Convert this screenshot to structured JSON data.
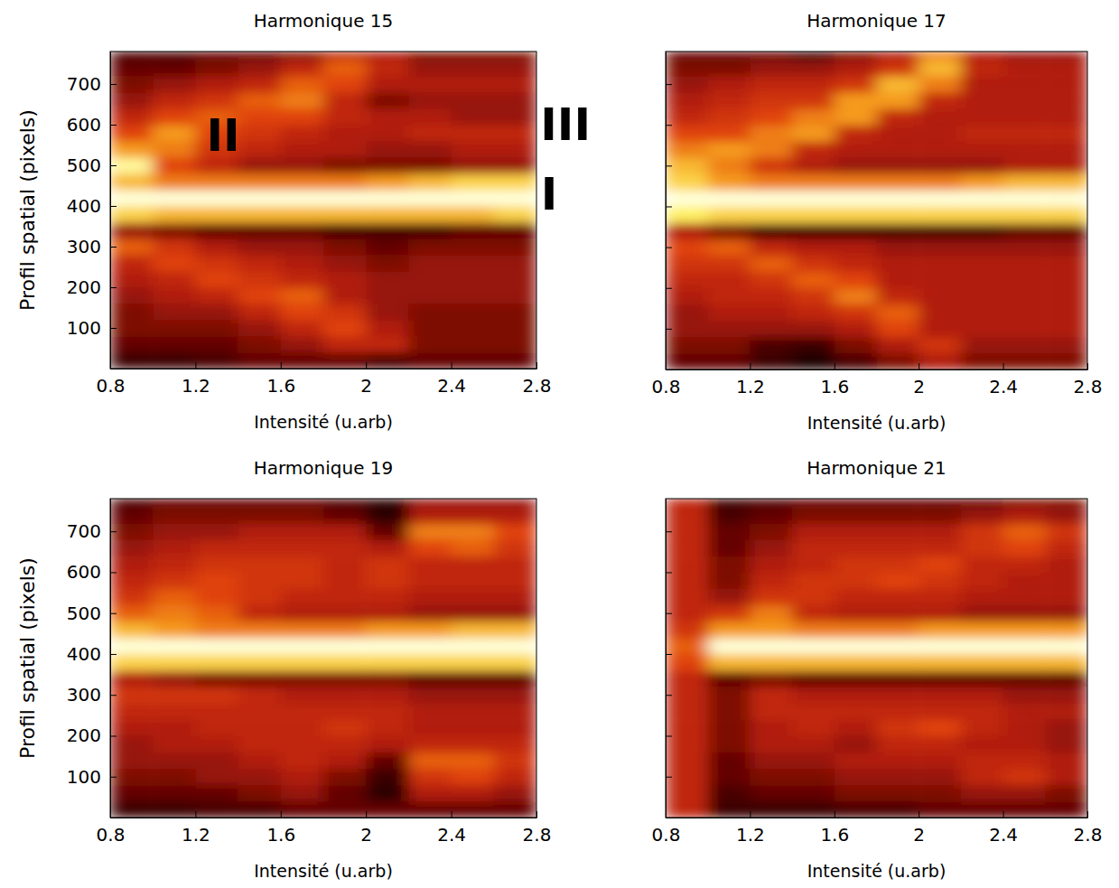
{
  "chart_data": [
    {
      "type": "heatmap",
      "title": "Harmonique 15",
      "x_label": "Intensité (u.arb)",
      "y_label": "Profil spatial (pixels)",
      "xlim": [
        0.8,
        2.8
      ],
      "ylim": [
        0,
        780
      ],
      "xticks": [
        0.8,
        1.2,
        1.6,
        2,
        2.4,
        2.8
      ],
      "yticks": [
        100,
        200,
        300,
        400,
        500,
        600,
        700
      ],
      "tick_labels": true,
      "zlim": [
        0,
        1
      ],
      "x_edges": [
        0.8,
        1.0,
        1.2,
        1.4,
        1.6,
        1.8,
        2.0,
        2.2,
        2.4,
        2.6,
        2.8
      ],
      "y_edges": [
        0,
        40,
        80,
        120,
        160,
        200,
        240,
        280,
        320,
        360,
        400,
        440,
        480,
        520,
        560,
        600,
        640,
        680,
        720,
        760,
        780
      ],
      "z": [
        [
          0.2,
          0.2,
          0.25,
          0.3,
          0.3,
          0.3,
          0.25,
          0.3,
          0.3,
          0.3
        ],
        [
          0.3,
          0.3,
          0.3,
          0.35,
          0.4,
          0.5,
          0.5,
          0.35,
          0.35,
          0.35
        ],
        [
          0.35,
          0.35,
          0.35,
          0.4,
          0.5,
          0.6,
          0.45,
          0.35,
          0.35,
          0.35
        ],
        [
          0.35,
          0.4,
          0.4,
          0.5,
          0.6,
          0.55,
          0.4,
          0.35,
          0.35,
          0.35
        ],
        [
          0.4,
          0.45,
          0.5,
          0.6,
          0.65,
          0.45,
          0.4,
          0.4,
          0.4,
          0.4
        ],
        [
          0.45,
          0.5,
          0.6,
          0.55,
          0.5,
          0.45,
          0.4,
          0.4,
          0.4,
          0.4
        ],
        [
          0.5,
          0.6,
          0.55,
          0.5,
          0.45,
          0.4,
          0.35,
          0.4,
          0.4,
          0.4
        ],
        [
          0.65,
          0.55,
          0.45,
          0.4,
          0.4,
          0.35,
          0.3,
          0.35,
          0.35,
          0.35
        ],
        [
          0.4,
          0.35,
          0.3,
          0.3,
          0.3,
          0.25,
          0.25,
          0.25,
          0.3,
          0.3
        ],
        [
          0.85,
          0.8,
          0.8,
          0.8,
          0.8,
          0.8,
          0.8,
          0.8,
          0.8,
          0.85
        ],
        [
          1,
          1,
          1,
          1,
          1,
          1,
          1,
          1,
          1,
          1
        ],
        [
          0.8,
          0.7,
          0.7,
          0.7,
          0.7,
          0.7,
          0.75,
          0.8,
          0.85,
          0.85
        ],
        [
          0.95,
          0.6,
          0.5,
          0.4,
          0.4,
          0.35,
          0.35,
          0.35,
          0.4,
          0.4
        ],
        [
          0.75,
          0.7,
          0.55,
          0.5,
          0.45,
          0.45,
          0.4,
          0.4,
          0.45,
          0.45
        ],
        [
          0.6,
          0.75,
          0.6,
          0.55,
          0.5,
          0.45,
          0.45,
          0.5,
          0.5,
          0.5
        ],
        [
          0.5,
          0.6,
          0.65,
          0.6,
          0.6,
          0.5,
          0.45,
          0.45,
          0.4,
          0.4
        ],
        [
          0.4,
          0.5,
          0.55,
          0.65,
          0.7,
          0.5,
          0.35,
          0.4,
          0.4,
          0.4
        ],
        [
          0.35,
          0.4,
          0.45,
          0.5,
          0.65,
          0.6,
          0.45,
          0.45,
          0.45,
          0.45
        ],
        [
          0.3,
          0.3,
          0.35,
          0.4,
          0.5,
          0.65,
          0.5,
          0.4,
          0.4,
          0.4
        ],
        [
          0.25,
          0.25,
          0.3,
          0.3,
          0.35,
          0.5,
          0.45,
          0.35,
          0.35,
          0.35
        ]
      ],
      "annotations": [
        {
          "text": "II",
          "x": 1.33,
          "y": 573
        },
        {
          "text": "III",
          "x": 2.936,
          "y": 600
        },
        {
          "text": "I",
          "x": 2.86,
          "y": 429
        }
      ]
    },
    {
      "type": "heatmap",
      "title": "Harmonique 17",
      "x_label": "Intensité (u.arb)",
      "xlim": [
        0.8,
        2.8
      ],
      "ylim": [
        0,
        780
      ],
      "xticks": [
        0.8,
        1.2,
        1.6,
        2,
        2.4,
        2.8
      ],
      "yticks": [
        100,
        200,
        300,
        400,
        500,
        600,
        700
      ],
      "tick_labels": "x",
      "zlim": [
        0,
        1
      ],
      "x_edges": [
        0.8,
        1.0,
        1.2,
        1.4,
        1.6,
        1.8,
        2.0,
        2.2,
        2.4,
        2.6,
        2.8
      ],
      "y_edges": [
        0,
        40,
        80,
        120,
        160,
        200,
        240,
        280,
        320,
        360,
        400,
        440,
        480,
        520,
        560,
        600,
        640,
        680,
        720,
        760,
        780
      ],
      "z": [
        [
          0.3,
          0.3,
          0.2,
          0.1,
          0.25,
          0.35,
          0.45,
          0.35,
          0.35,
          0.35
        ],
        [
          0.35,
          0.35,
          0.25,
          0.2,
          0.35,
          0.45,
          0.55,
          0.4,
          0.4,
          0.4
        ],
        [
          0.4,
          0.4,
          0.4,
          0.4,
          0.45,
          0.6,
          0.45,
          0.45,
          0.45,
          0.45
        ],
        [
          0.4,
          0.45,
          0.45,
          0.5,
          0.55,
          0.65,
          0.45,
          0.45,
          0.45,
          0.45
        ],
        [
          0.45,
          0.5,
          0.5,
          0.55,
          0.7,
          0.5,
          0.45,
          0.45,
          0.45,
          0.45
        ],
        [
          0.5,
          0.5,
          0.55,
          0.65,
          0.6,
          0.45,
          0.45,
          0.45,
          0.45,
          0.45
        ],
        [
          0.55,
          0.55,
          0.65,
          0.55,
          0.5,
          0.45,
          0.45,
          0.45,
          0.45,
          0.45
        ],
        [
          0.6,
          0.65,
          0.5,
          0.45,
          0.45,
          0.4,
          0.4,
          0.4,
          0.4,
          0.4
        ],
        [
          0.45,
          0.35,
          0.25,
          0.25,
          0.25,
          0.25,
          0.25,
          0.25,
          0.3,
          0.3
        ],
        [
          0.9,
          0.85,
          0.85,
          0.85,
          0.85,
          0.85,
          0.85,
          0.85,
          0.85,
          0.85
        ],
        [
          1,
          1,
          1,
          1,
          1,
          1,
          1,
          1,
          1,
          1
        ],
        [
          0.85,
          0.75,
          0.7,
          0.7,
          0.7,
          0.7,
          0.7,
          0.75,
          0.8,
          0.8
        ],
        [
          0.8,
          0.7,
          0.55,
          0.45,
          0.4,
          0.4,
          0.4,
          0.4,
          0.45,
          0.45
        ],
        [
          0.7,
          0.75,
          0.7,
          0.5,
          0.45,
          0.45,
          0.45,
          0.45,
          0.45,
          0.45
        ],
        [
          0.6,
          0.6,
          0.7,
          0.75,
          0.5,
          0.45,
          0.45,
          0.5,
          0.5,
          0.5
        ],
        [
          0.5,
          0.55,
          0.6,
          0.7,
          0.75,
          0.5,
          0.45,
          0.45,
          0.45,
          0.45
        ],
        [
          0.45,
          0.5,
          0.55,
          0.55,
          0.75,
          0.75,
          0.5,
          0.45,
          0.45,
          0.45
        ],
        [
          0.4,
          0.45,
          0.5,
          0.5,
          0.55,
          0.8,
          0.7,
          0.45,
          0.45,
          0.45
        ],
        [
          0.35,
          0.35,
          0.4,
          0.4,
          0.45,
          0.55,
          0.8,
          0.5,
          0.45,
          0.45
        ],
        [
          0.3,
          0.3,
          0.3,
          0.15,
          0.35,
          0.45,
          0.7,
          0.45,
          0.4,
          0.4
        ]
      ]
    },
    {
      "type": "heatmap",
      "title": "Harmonique 19",
      "x_label": "Intensité (u.arb)",
      "y_label": "Profil spatial (pixels)",
      "xlim": [
        0.8,
        2.8
      ],
      "ylim": [
        0,
        780
      ],
      "xticks": [
        0.8,
        1.2,
        1.6,
        2,
        2.4,
        2.8
      ],
      "yticks": [
        100,
        200,
        300,
        400,
        500,
        600,
        700
      ],
      "tick_labels": true,
      "zlim": [
        0,
        1
      ],
      "x_edges": [
        0.8,
        1.0,
        1.2,
        1.4,
        1.6,
        1.8,
        2.0,
        2.2,
        2.4,
        2.6,
        2.8
      ],
      "y_edges": [
        0,
        40,
        80,
        120,
        160,
        200,
        240,
        280,
        320,
        360,
        400,
        440,
        480,
        520,
        560,
        600,
        640,
        680,
        720,
        760,
        780
      ],
      "z": [
        [
          0.2,
          0.2,
          0.25,
          0.25,
          0.3,
          0.3,
          0.3,
          0.3,
          0.3,
          0.3
        ],
        [
          0.3,
          0.3,
          0.3,
          0.35,
          0.4,
          0.3,
          0.15,
          0.45,
          0.45,
          0.4
        ],
        [
          0.35,
          0.35,
          0.4,
          0.4,
          0.45,
          0.35,
          0.2,
          0.55,
          0.6,
          0.5
        ],
        [
          0.4,
          0.4,
          0.4,
          0.45,
          0.5,
          0.45,
          0.3,
          0.65,
          0.65,
          0.55
        ],
        [
          0.4,
          0.45,
          0.45,
          0.5,
          0.5,
          0.5,
          0.45,
          0.5,
          0.5,
          0.5
        ],
        [
          0.45,
          0.45,
          0.5,
          0.5,
          0.5,
          0.55,
          0.5,
          0.45,
          0.45,
          0.45
        ],
        [
          0.5,
          0.5,
          0.5,
          0.5,
          0.5,
          0.5,
          0.5,
          0.45,
          0.45,
          0.45
        ],
        [
          0.55,
          0.55,
          0.55,
          0.5,
          0.45,
          0.45,
          0.45,
          0.4,
          0.4,
          0.4
        ],
        [
          0.45,
          0.4,
          0.35,
          0.35,
          0.35,
          0.35,
          0.35,
          0.3,
          0.3,
          0.3
        ],
        [
          0.85,
          0.85,
          0.85,
          0.85,
          0.85,
          0.85,
          0.85,
          0.85,
          0.85,
          0.85
        ],
        [
          1,
          1,
          1,
          1,
          1,
          1,
          1,
          1,
          1,
          1
        ],
        [
          0.8,
          0.75,
          0.7,
          0.7,
          0.7,
          0.7,
          0.75,
          0.75,
          0.8,
          0.8
        ],
        [
          0.65,
          0.7,
          0.65,
          0.5,
          0.45,
          0.45,
          0.45,
          0.4,
          0.4,
          0.4
        ],
        [
          0.55,
          0.65,
          0.6,
          0.55,
          0.5,
          0.5,
          0.5,
          0.45,
          0.45,
          0.45
        ],
        [
          0.5,
          0.55,
          0.6,
          0.55,
          0.55,
          0.5,
          0.55,
          0.5,
          0.5,
          0.5
        ],
        [
          0.45,
          0.5,
          0.55,
          0.55,
          0.55,
          0.5,
          0.55,
          0.5,
          0.5,
          0.5
        ],
        [
          0.4,
          0.45,
          0.5,
          0.5,
          0.5,
          0.5,
          0.45,
          0.6,
          0.65,
          0.55
        ],
        [
          0.35,
          0.4,
          0.4,
          0.45,
          0.45,
          0.45,
          0.3,
          0.7,
          0.7,
          0.6
        ],
        [
          0.3,
          0.35,
          0.35,
          0.35,
          0.35,
          0.3,
          0.15,
          0.45,
          0.45,
          0.45
        ],
        [
          0.25,
          0.3,
          0.3,
          0.3,
          0.3,
          0.25,
          0.15,
          0.4,
          0.4,
          0.4
        ]
      ]
    },
    {
      "type": "heatmap",
      "title": "Harmonique 21",
      "x_label": "Intensité (u.arb)",
      "xlim": [
        0.8,
        2.8
      ],
      "ylim": [
        0,
        780
      ],
      "xticks": [
        0.8,
        1.2,
        1.6,
        2,
        2.4,
        2.8
      ],
      "yticks": [
        100,
        200,
        300,
        400,
        500,
        600,
        700
      ],
      "tick_labels": "x",
      "zlim": [
        0,
        1
      ],
      "x_edges": [
        0.8,
        1.0,
        1.2,
        1.4,
        1.6,
        1.8,
        2.0,
        2.2,
        2.4,
        2.6,
        2.8
      ],
      "y_edges": [
        0,
        40,
        80,
        120,
        160,
        200,
        240,
        280,
        320,
        360,
        400,
        440,
        480,
        520,
        560,
        600,
        640,
        680,
        720,
        760,
        780
      ],
      "z": [
        [
          0.5,
          0.2,
          0.2,
          0.2,
          0.25,
          0.25,
          0.3,
          0.3,
          0.3,
          0.3
        ],
        [
          0.5,
          0.25,
          0.3,
          0.3,
          0.35,
          0.35,
          0.35,
          0.4,
          0.4,
          0.35
        ],
        [
          0.5,
          0.3,
          0.35,
          0.35,
          0.4,
          0.4,
          0.4,
          0.5,
          0.55,
          0.45
        ],
        [
          0.5,
          0.3,
          0.4,
          0.4,
          0.45,
          0.45,
          0.45,
          0.5,
          0.5,
          0.45
        ],
        [
          0.5,
          0.35,
          0.45,
          0.45,
          0.4,
          0.5,
          0.5,
          0.45,
          0.45,
          0.4
        ],
        [
          0.5,
          0.35,
          0.45,
          0.5,
          0.45,
          0.55,
          0.6,
          0.5,
          0.45,
          0.4
        ],
        [
          0.5,
          0.35,
          0.5,
          0.5,
          0.5,
          0.5,
          0.5,
          0.5,
          0.45,
          0.45
        ],
        [
          0.5,
          0.35,
          0.5,
          0.45,
          0.45,
          0.45,
          0.45,
          0.45,
          0.4,
          0.4
        ],
        [
          0.5,
          0.3,
          0.35,
          0.3,
          0.3,
          0.3,
          0.3,
          0.3,
          0.3,
          0.3
        ],
        [
          0.6,
          0.8,
          0.8,
          0.8,
          0.8,
          0.8,
          0.8,
          0.8,
          0.8,
          0.8
        ],
        [
          0.65,
          1,
          1,
          1,
          1,
          1,
          1,
          1,
          1,
          1
        ],
        [
          0.55,
          0.75,
          0.75,
          0.7,
          0.7,
          0.7,
          0.75,
          0.75,
          0.75,
          0.75
        ],
        [
          0.5,
          0.55,
          0.7,
          0.5,
          0.45,
          0.45,
          0.45,
          0.4,
          0.4,
          0.4
        ],
        [
          0.5,
          0.4,
          0.55,
          0.55,
          0.5,
          0.5,
          0.5,
          0.45,
          0.45,
          0.45
        ],
        [
          0.5,
          0.35,
          0.5,
          0.55,
          0.55,
          0.6,
          0.55,
          0.5,
          0.45,
          0.45
        ],
        [
          0.5,
          0.35,
          0.45,
          0.5,
          0.55,
          0.55,
          0.6,
          0.5,
          0.5,
          0.45
        ],
        [
          0.5,
          0.3,
          0.4,
          0.5,
          0.5,
          0.5,
          0.5,
          0.55,
          0.6,
          0.5
        ],
        [
          0.5,
          0.3,
          0.35,
          0.45,
          0.45,
          0.45,
          0.45,
          0.55,
          0.65,
          0.55
        ],
        [
          0.5,
          0.25,
          0.3,
          0.35,
          0.35,
          0.35,
          0.35,
          0.4,
          0.45,
          0.4
        ],
        [
          0.5,
          0.2,
          0.25,
          0.3,
          0.3,
          0.3,
          0.3,
          0.3,
          0.35,
          0.35
        ]
      ]
    }
  ]
}
